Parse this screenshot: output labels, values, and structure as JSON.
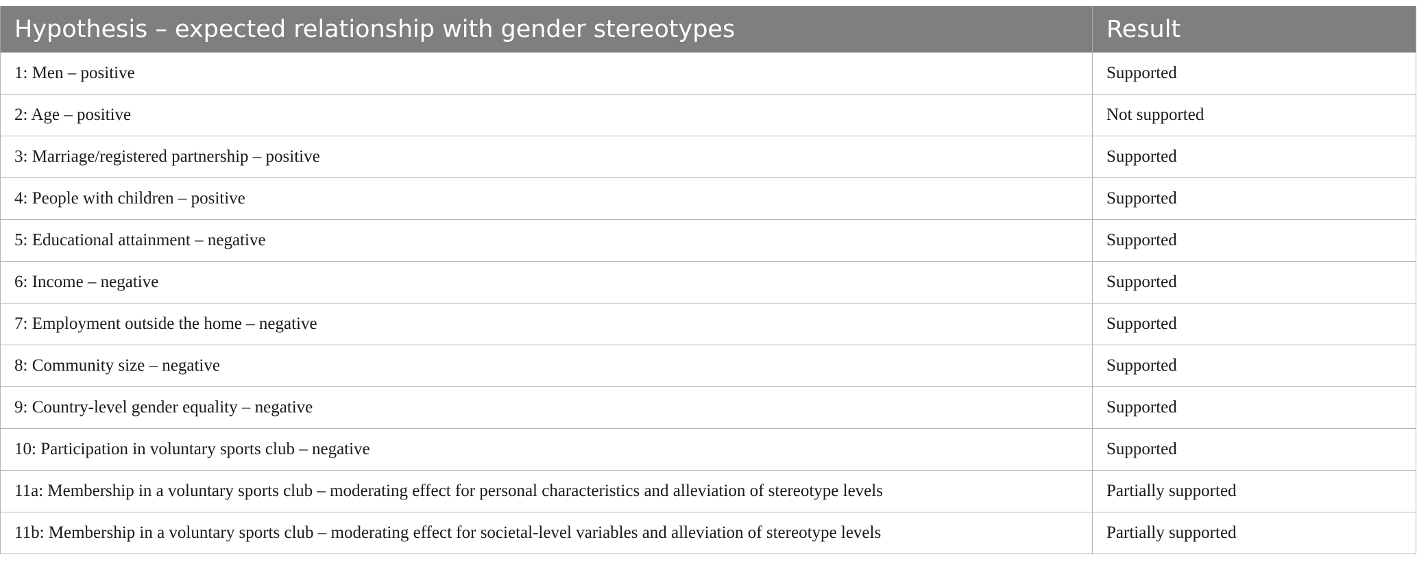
{
  "table": {
    "headers": [
      "Hypothesis – expected relationship with gender stereotypes",
      "Result"
    ],
    "rows": [
      {
        "hypothesis": "1: Men – positive",
        "result": "Supported"
      },
      {
        "hypothesis": "2: Age – positive",
        "result": "Not supported"
      },
      {
        "hypothesis": "3: Marriage/registered partnership – positive",
        "result": "Supported"
      },
      {
        "hypothesis": "4: People with children – positive",
        "result": "Supported"
      },
      {
        "hypothesis": "5: Educational attainment – negative",
        "result": "Supported"
      },
      {
        "hypothesis": "6: Income – negative",
        "result": "Supported"
      },
      {
        "hypothesis": "7: Employment outside the home – negative",
        "result": "Supported"
      },
      {
        "hypothesis": "8: Community size – negative",
        "result": "Supported"
      },
      {
        "hypothesis": "9: Country-level gender equality – negative",
        "result": "Supported"
      },
      {
        "hypothesis": "10: Participation in voluntary sports club – negative",
        "result": "Supported"
      },
      {
        "hypothesis": "11a: Membership in a voluntary sports club – moderating effect for personal characteristics and alleviation of stereotype levels",
        "result": "Partially supported"
      },
      {
        "hypothesis": "11b: Membership in a voluntary sports club – moderating effect for societal-level variables and alleviation of stereotype levels",
        "result": "Partially supported"
      }
    ]
  },
  "colors": {
    "header_background": "#7f7f7f",
    "header_text": "#ffffff",
    "cell_border": "#b3b3b3",
    "body_text": "#1a1a1a"
  }
}
